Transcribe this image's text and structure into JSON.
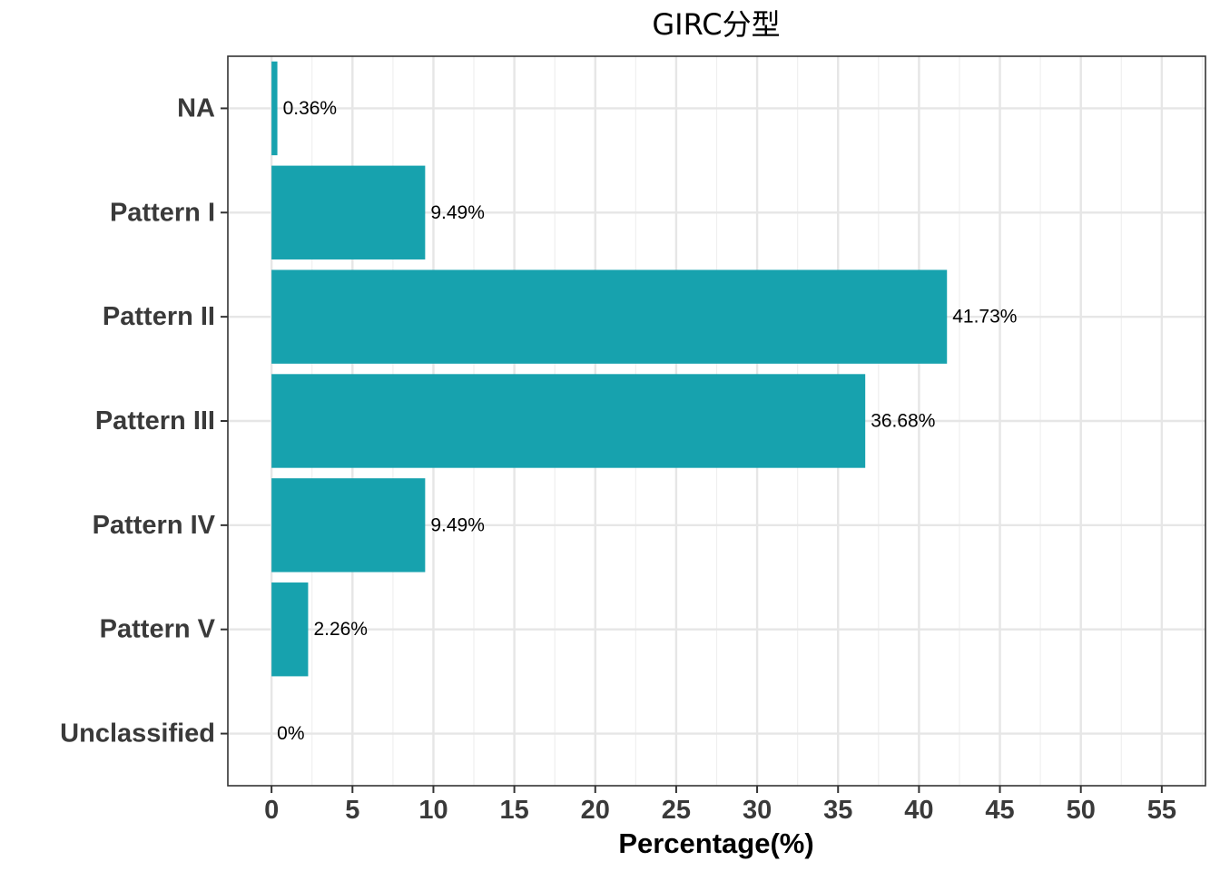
{
  "chart_data": {
    "type": "bar",
    "orientation": "horizontal",
    "title": "GIRC分型",
    "xlabel": "Percentage(%)",
    "ylabel": "",
    "categories": [
      "NA",
      "Pattern I",
      "Pattern II",
      "Pattern III",
      "Pattern IV",
      "Pattern V",
      "Unclassified"
    ],
    "values": [
      0.36,
      9.49,
      41.73,
      36.68,
      9.49,
      2.26,
      0
    ],
    "value_labels": [
      "0.36%",
      "9.49%",
      "41.73%",
      "36.68%",
      "9.49%",
      "2.26%",
      "0%"
    ],
    "xlim": [
      -2.7,
      57.7
    ],
    "xticks": [
      0,
      5,
      10,
      15,
      20,
      25,
      30,
      35,
      40,
      45,
      50,
      55
    ],
    "xtick_labels": [
      "0",
      "5",
      "10",
      "15",
      "20",
      "25",
      "30",
      "35",
      "40",
      "45",
      "50",
      "55"
    ],
    "grid": true,
    "legend": "none",
    "bar_color": "#17a2ae"
  }
}
